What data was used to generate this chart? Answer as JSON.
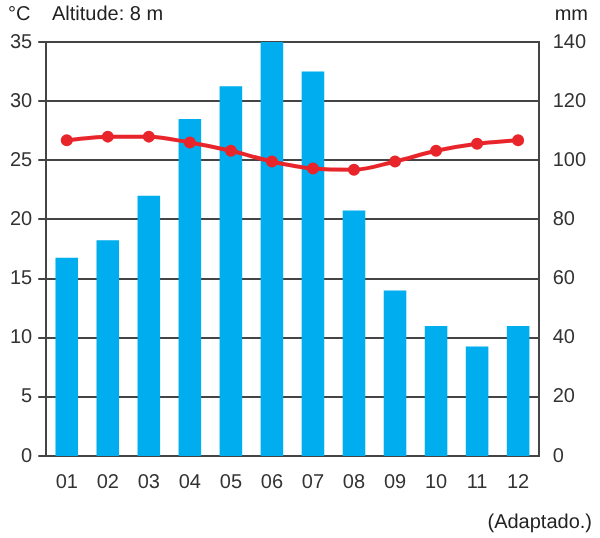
{
  "chart_data": {
    "type": "bar",
    "subtitle": "Altitude: 8 m",
    "ylabel": "°C",
    "y2label": "mm",
    "annotations": [
      "(Adaptado.)"
    ],
    "categories": [
      "01",
      "02",
      "03",
      "04",
      "05",
      "06",
      "07",
      "08",
      "09",
      "10",
      "11",
      "12"
    ],
    "series": [
      {
        "axis": "y2",
        "color": "#00aeef",
        "values": [
          67,
          73,
          88,
          114,
          125,
          140,
          130,
          83,
          56,
          44,
          37,
          44
        ]
      },
      {
        "type": "line",
        "axis": "y",
        "color": "#e8252a",
        "values": [
          26.7,
          27.0,
          27.0,
          26.5,
          25.8,
          24.9,
          24.3,
          24.2,
          24.9,
          25.8,
          26.4,
          26.7
        ]
      }
    ],
    "ylim": [
      0,
      35
    ],
    "yticks": [
      0,
      5,
      10,
      15,
      20,
      25,
      30,
      35
    ],
    "y2lim": [
      0,
      140
    ],
    "y2ticks": [
      0,
      20,
      40,
      60,
      80,
      100,
      120,
      140
    ],
    "grid": "y",
    "legend": false,
    "marker": "circle",
    "line_style": "solid"
  }
}
